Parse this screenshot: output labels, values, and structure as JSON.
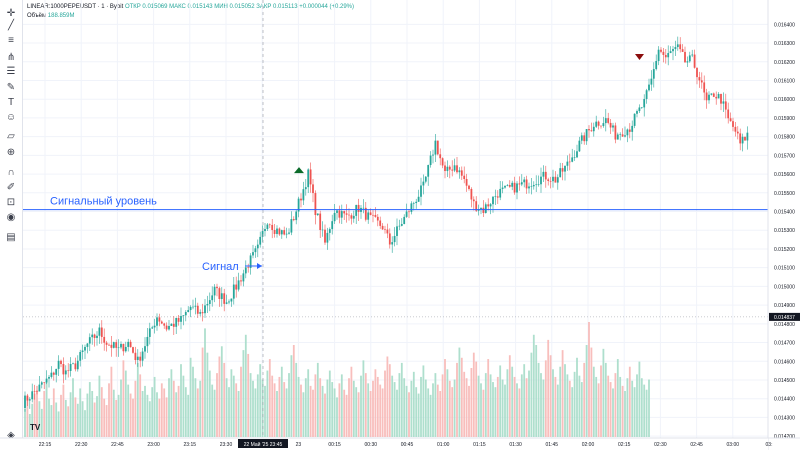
{
  "legend": {
    "symbol": "LINEAR:1000PEPEUSDT · 1 · Bybit",
    "ohlc": "ОТКР 0.015069  МАКС 0.015143  МИН 0.015052  ЗАКР 0.015113  +0.000044 (+0.29%)",
    "volume_label": "Объём",
    "volume_value": "188.859M"
  },
  "toolbar": {
    "icons": [
      "crosshair-icon",
      "trend-line-icon",
      "horizontal-lines-icon",
      "pitchfork-icon",
      "fib-icon",
      "brush-icon",
      "text-icon",
      "emoji-icon",
      "ruler-icon",
      "zoom-icon",
      "magnet-icon",
      "lock-drawings-icon",
      "lock-icon",
      "eye-icon",
      "trash-icon"
    ]
  },
  "chart_data": {
    "type": "candlestick",
    "symbol": "1000PEPEUSDT",
    "exchange": "Bybit",
    "interval": "1",
    "ylim": [
      0.01419,
      0.01653
    ],
    "y_ticks": [
      "0.016400",
      "0.016300",
      "0.016200",
      "0.016100",
      "0.016000",
      "0.015900",
      "0.015800",
      "0.015700",
      "0.015600",
      "0.015500",
      "0.015400",
      "0.015300",
      "0.015200",
      "0.015100",
      "0.015000",
      "0.014900",
      "0.014800",
      "0.014700",
      "0.014600",
      "0.014500",
      "0.014400",
      "0.014300",
      "0.014200"
    ],
    "x_ticks": [
      "22:15",
      "22:30",
      "22:45",
      "23:00",
      "23:15",
      "23:30",
      "23:45",
      "23",
      "00:15",
      "00:30",
      "00:45",
      "01:00",
      "01:15",
      "01:30",
      "01:45",
      "02:00",
      "02:15",
      "02:30",
      "02:45",
      "03:00",
      "03:"
    ],
    "crosshair_time": "22 Май '25   23:45",
    "current_price": "0.014837",
    "up_color": "#26a69a",
    "down_color": "#ef5350",
    "price_path": [
      [
        0,
        0.01438
      ],
      [
        7,
        0.01446
      ],
      [
        12,
        0.01452
      ],
      [
        15,
        0.01459
      ],
      [
        18,
        0.01454
      ],
      [
        22,
        0.01458
      ],
      [
        27,
        0.01469
      ],
      [
        32,
        0.01476
      ],
      [
        35,
        0.0147
      ],
      [
        40,
        0.01466
      ],
      [
        44,
        0.0147
      ],
      [
        48,
        0.0146
      ],
      [
        52,
        0.01472
      ],
      [
        56,
        0.01484
      ],
      [
        60,
        0.01478
      ],
      [
        66,
        0.01482
      ],
      [
        70,
        0.01489
      ],
      [
        74,
        0.01485
      ],
      [
        80,
        0.01498
      ],
      [
        85,
        0.01492
      ],
      [
        89,
        0.015
      ],
      [
        94,
        0.01512
      ],
      [
        98,
        0.0152
      ],
      [
        102,
        0.01536
      ],
      [
        105,
        0.01531
      ],
      [
        110,
        0.01527
      ],
      [
        113,
        0.01537
      ],
      [
        117,
        0.01552
      ],
      [
        119,
        0.0156
      ],
      [
        122,
        0.01541
      ],
      [
        126,
        0.01523
      ],
      [
        130,
        0.01541
      ],
      [
        135,
        0.01537
      ],
      [
        140,
        0.01542
      ],
      [
        145,
        0.01536
      ],
      [
        150,
        0.01532
      ],
      [
        153,
        0.01523
      ],
      [
        157,
        0.01532
      ],
      [
        162,
        0.01543
      ],
      [
        167,
        0.01553
      ],
      [
        172,
        0.01577
      ],
      [
        176,
        0.0156
      ],
      [
        180,
        0.01565
      ],
      [
        184,
        0.01557
      ],
      [
        188,
        0.01544
      ],
      [
        192,
        0.01541
      ],
      [
        198,
        0.0155
      ],
      [
        205,
        0.01553
      ],
      [
        212,
        0.01556
      ],
      [
        218,
        0.01559
      ],
      [
        222,
        0.01557
      ],
      [
        227,
        0.01565
      ],
      [
        232,
        0.01576
      ],
      [
        238,
        0.01587
      ],
      [
        243,
        0.01589
      ],
      [
        247,
        0.01581
      ],
      [
        250,
        0.01583
      ],
      [
        253,
        0.01585
      ],
      [
        256,
        0.01592
      ],
      [
        259,
        0.01598
      ],
      [
        262,
        0.0161
      ],
      [
        265,
        0.01627
      ],
      [
        268,
        0.01622
      ],
      [
        271,
        0.01626
      ],
      [
        273,
        0.01627
      ],
      [
        276,
        0.0162
      ],
      [
        279,
        0.01621
      ],
      [
        282,
        0.01611
      ],
      [
        285,
        0.01598
      ],
      [
        288,
        0.01603
      ],
      [
        291,
        0.016
      ],
      [
        294,
        0.01589
      ],
      [
        297,
        0.01583
      ],
      [
        299,
        0.01576
      ],
      [
        302,
        0.01581
      ]
    ],
    "volumes": [
      22,
      30,
      18,
      26,
      34,
      40,
      28,
      22,
      36,
      44,
      30,
      25,
      38,
      27,
      20,
      33,
      41,
      29,
      24,
      35,
      46,
      31,
      26,
      38,
      28,
      21,
      34,
      43,
      36,
      27,
      32,
      48,
      39,
      30,
      25,
      42,
      55,
      37,
      29,
      33,
      45,
      60,
      52,
      41,
      34,
      30,
      44,
      58,
      49,
      36,
      40,
      33,
      28,
      39,
      47,
      35,
      30,
      42,
      38,
      31,
      46,
      53,
      44,
      35,
      40,
      57,
      48,
      39,
      33,
      62,
      55,
      46,
      38,
      44,
      70,
      85,
      66,
      52,
      41,
      37,
      50,
      63,
      71,
      58,
      46,
      39,
      53,
      48,
      42,
      36,
      55,
      68,
      80,
      65,
      50,
      44,
      38,
      49,
      57,
      45,
      40,
      52,
      61,
      48,
      42,
      36,
      47,
      55,
      43,
      38,
      50,
      64,
      72,
      58,
      47,
      41,
      35,
      46,
      53,
      40,
      37,
      49,
      58,
      46,
      40,
      34,
      45,
      52,
      43,
      38,
      31,
      42,
      49,
      37,
      33,
      46,
      55,
      44,
      39,
      35,
      48,
      60,
      50,
      42,
      36,
      44,
      53,
      47,
      41,
      38,
      52,
      63,
      57,
      48,
      43,
      37,
      50,
      58,
      46,
      40,
      35,
      44,
      51,
      39,
      34,
      47,
      56,
      45,
      38,
      33,
      42,
      50,
      41,
      36,
      49,
      61,
      53,
      44,
      39,
      45,
      58,
      70,
      62,
      51,
      46,
      40,
      54,
      66,
      59,
      48,
      42,
      37,
      50,
      61,
      49,
      43,
      39,
      47,
      56,
      45,
      41,
      53,
      64,
      55,
      47,
      42,
      38,
      49,
      57,
      46,
      52,
      66,
      80,
      72,
      58,
      50,
      45,
      60,
      76,
      64,
      53,
      47,
      41,
      55,
      68,
      57,
      49,
      44,
      39,
      51,
      62,
      48,
      43,
      58,
      72,
      90,
      70,
      55,
      47,
      42,
      56,
      69,
      58,
      48,
      43,
      38,
      50,
      61,
      47,
      40,
      36,
      46,
      55,
      44,
      39,
      49,
      59,
      46,
      41,
      37,
      45
    ],
    "annotations": [
      {
        "text": "Сигнальный уровень",
        "price": 0.01541
      },
      {
        "text": "Сигнал"
      }
    ],
    "markers": [
      {
        "type": "arrow-up",
        "price": 0.0156
      },
      {
        "type": "arrow-down",
        "price": 0.01622
      }
    ]
  }
}
